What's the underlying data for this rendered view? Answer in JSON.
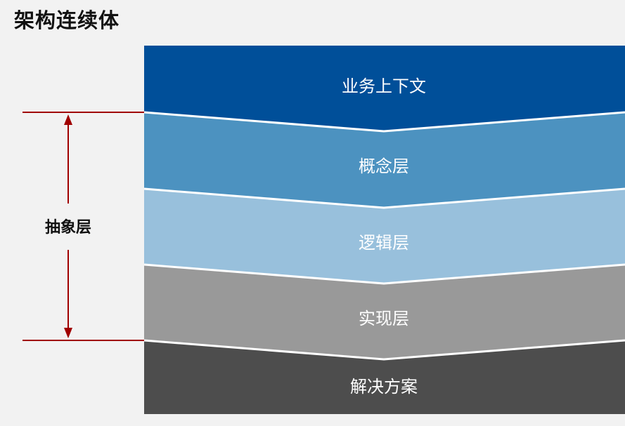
{
  "title": "架构连续体",
  "side_label": "抽象层",
  "layers": [
    {
      "label": "业务上下文",
      "color": "#004f99"
    },
    {
      "label": "概念层",
      "color": "#4c92c0"
    },
    {
      "label": "逻辑层",
      "color": "#98c0dc"
    },
    {
      "label": "实现层",
      "color": "#999999"
    },
    {
      "label": "解决方案",
      "color": "#4d4d4d"
    }
  ],
  "accent_color": "#a00000"
}
